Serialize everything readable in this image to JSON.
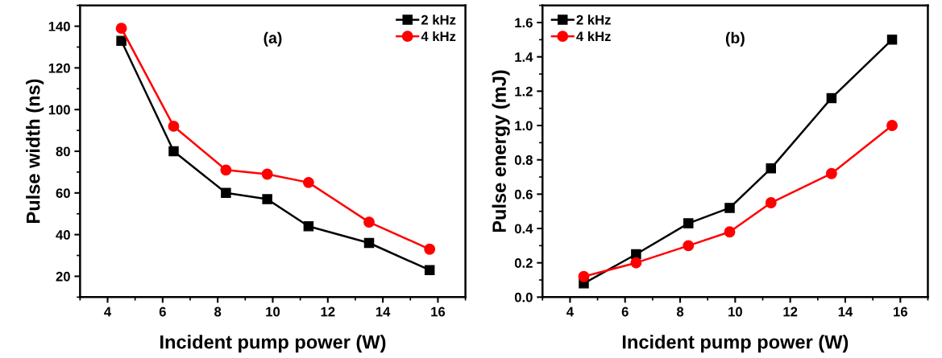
{
  "chart_data": [
    {
      "type": "line",
      "xlabel": "Incident pump power (W)",
      "ylabel": "Pulse width (ns)",
      "annotations": [
        "(a)"
      ],
      "x": [
        4.5,
        6.4,
        8.3,
        9.8,
        11.3,
        13.5,
        15.7
      ],
      "xlim": [
        3,
        17
      ],
      "ylim": [
        10,
        150
      ],
      "xticks": [
        4,
        6,
        8,
        10,
        12,
        14,
        16
      ],
      "yticks": [
        20,
        40,
        60,
        80,
        100,
        120,
        140
      ],
      "legend": "top right",
      "grid": false,
      "series": [
        {
          "name": "2 kHz",
          "color": "#000000",
          "marker": "square",
          "values": [
            133,
            80,
            60,
            57,
            44,
            36,
            23
          ]
        },
        {
          "name": "4 kHz",
          "color": "#ff0000",
          "marker": "circle",
          "values": [
            139,
            92,
            71,
            69,
            65,
            46,
            33
          ]
        }
      ]
    },
    {
      "type": "line",
      "xlabel": "Incident pump power (W)",
      "ylabel": "Pulse energy (mJ)",
      "annotations": [
        "(b)"
      ],
      "x": [
        4.5,
        6.4,
        8.3,
        9.8,
        11.3,
        13.5,
        15.7
      ],
      "xlim": [
        3,
        17
      ],
      "ylim": [
        0,
        1.7
      ],
      "xticks": [
        4,
        6,
        8,
        10,
        12,
        14,
        16
      ],
      "yticks": [
        {
          "value": 0,
          "label": "0.0"
        },
        0.2,
        0.4,
        0.6,
        0.8,
        {
          "value": 1,
          "label": "1.0"
        },
        1.2,
        1.4,
        1.6
      ],
      "legend": "top left",
      "grid": false,
      "series": [
        {
          "name": "2 kHz",
          "color": "#000000",
          "marker": "square",
          "values": [
            0.08,
            0.25,
            0.43,
            0.52,
            0.75,
            1.16,
            1.5
          ]
        },
        {
          "name": "4 kHz",
          "color": "#ff0000",
          "marker": "circle",
          "values": [
            0.12,
            0.2,
            0.3,
            0.38,
            0.55,
            0.72,
            1.0
          ]
        }
      ]
    }
  ]
}
